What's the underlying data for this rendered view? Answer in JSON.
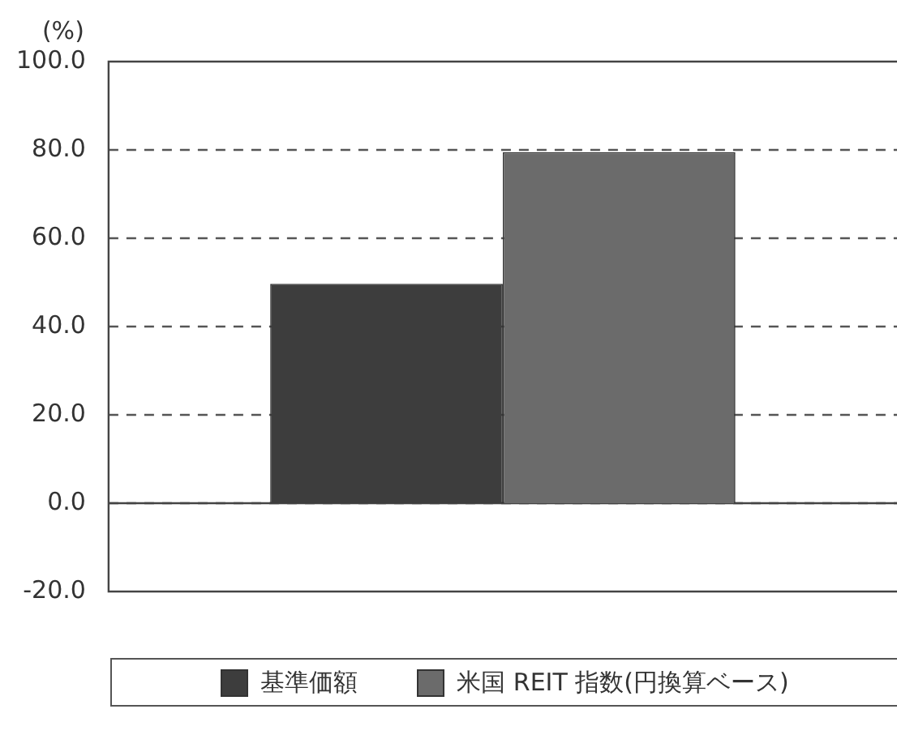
{
  "chart_data": {
    "type": "bar",
    "ylabel": "(%)",
    "categories": [
      null
    ],
    "series": [
      {
        "name": "基準価額",
        "color": "#3d3d3d",
        "values": [
          49.7
        ]
      },
      {
        "name": "米国 REIT 指数(円換算ベース)",
        "color": "#6b6b6b",
        "values": [
          79.5
        ]
      }
    ],
    "ylim": [
      -20,
      100
    ],
    "yticks": [
      {
        "value": -20,
        "label": "-20.0"
      },
      {
        "value": 0,
        "label": "0.0"
      },
      {
        "value": 20,
        "label": "20.0"
      },
      {
        "value": 40,
        "label": "40.0"
      },
      {
        "value": 60,
        "label": "60.0"
      },
      {
        "value": 80,
        "label": "80.0"
      },
      {
        "value": 100,
        "label": "100.0"
      }
    ],
    "grid": "y",
    "line_style": "dashed",
    "legend": "bottom",
    "ref_lines": [
      {
        "axis": "y",
        "value": 0,
        "line_style": "solid"
      }
    ]
  }
}
